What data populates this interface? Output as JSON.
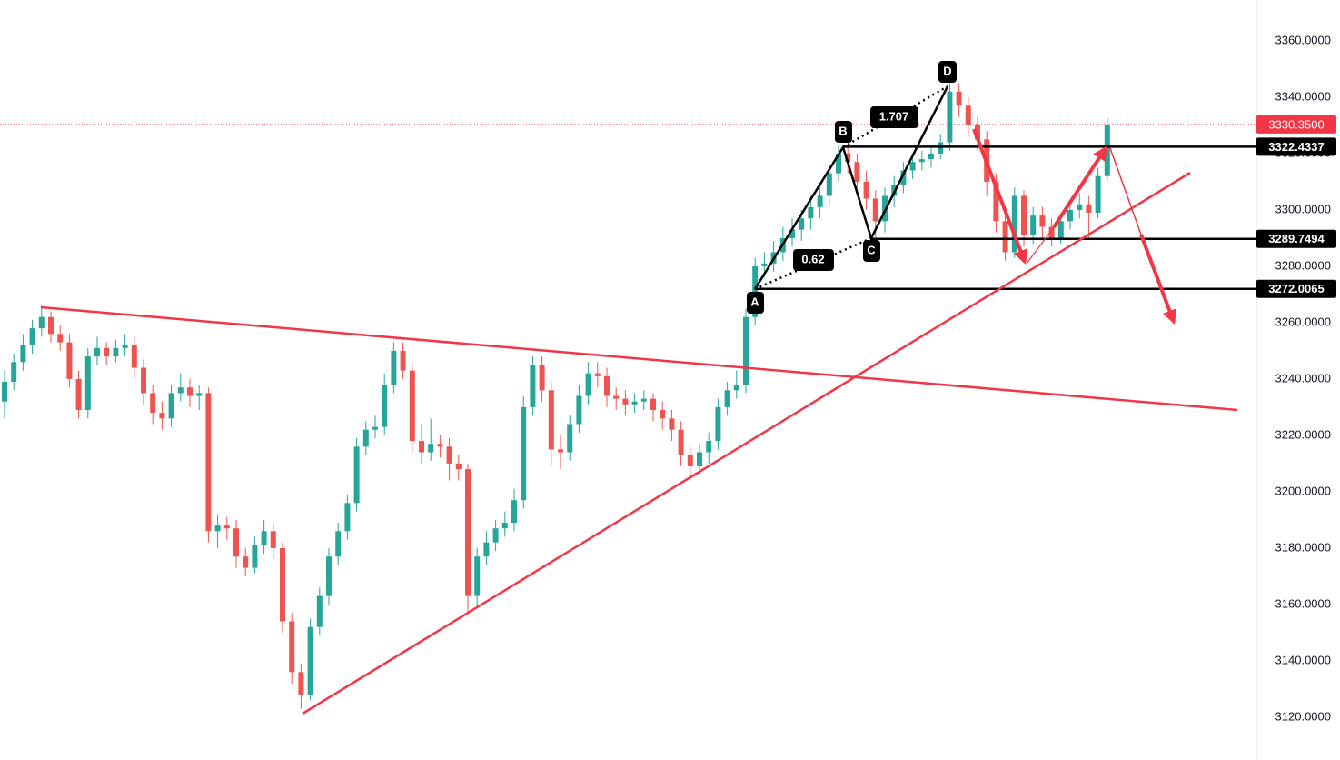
{
  "chart_data": {
    "type": "candlestick",
    "ylim": [
      3104.8,
      3374.5
    ],
    "yticks": [
      {
        "value": 3120,
        "label": "3120.0000"
      },
      {
        "value": 3140,
        "label": "3140.0000"
      },
      {
        "value": 3160,
        "label": "3160.0000"
      },
      {
        "value": 3180,
        "label": "3180.0000"
      },
      {
        "value": 3200,
        "label": "3200.0000"
      },
      {
        "value": 3220,
        "label": "3220.0000"
      },
      {
        "value": 3240,
        "label": "3240.0000"
      },
      {
        "value": 3260,
        "label": "3260.0000"
      },
      {
        "value": 3280,
        "label": "3280.0000"
      },
      {
        "value": 3300,
        "label": "3300.0000"
      },
      {
        "value": 3320,
        "label": "3320.0000"
      },
      {
        "value": 3340,
        "label": "3340.0000"
      },
      {
        "value": 3360,
        "label": "3360.0000"
      }
    ],
    "price_lines": [
      {
        "value": 3322.4337,
        "label": "3322.4337"
      },
      {
        "value": 3289.7494,
        "label": "3289.7494"
      },
      {
        "value": 3272.0065,
        "label": "3272.0065"
      }
    ],
    "last_price": {
      "value": 3330.35,
      "label": "3330.3500"
    },
    "annotations": {
      "points": [
        "A",
        "B",
        "C",
        "D"
      ],
      "ratios": [
        "1.707",
        "0.62"
      ]
    },
    "series": [
      {
        "up_color": "#26a69a",
        "down_color": "#ef5350",
        "open": [
          3232,
          3239,
          3246,
          3252,
          3258,
          3262,
          3256,
          3253,
          3240,
          3229,
          3248,
          3251,
          3248,
          3251,
          3252,
          3244,
          3235,
          3228,
          3226,
          3235,
          3237,
          3234,
          3235,
          3186,
          3188,
          3187,
          3177,
          3173,
          3181,
          3186,
          3180,
          3154,
          3136,
          3128,
          3152,
          3163,
          3177,
          3186,
          3196,
          3216,
          3222,
          3223,
          3238,
          3250,
          3243,
          3218,
          3214,
          3217,
          3216,
          3210,
          3208,
          3163,
          3177,
          3182,
          3187,
          3189,
          3197,
          3230,
          3245,
          3236,
          3215,
          3214,
          3224,
          3234,
          3242,
          3241,
          3234,
          3233,
          3231,
          3232,
          3233,
          3229,
          3226,
          3222,
          3213,
          3209,
          3214,
          3218,
          3230,
          3236,
          3238,
          3262,
          3280,
          3281,
          3285,
          3290,
          3293,
          3297,
          3301,
          3305,
          3313,
          3320,
          3317,
          3310,
          3304,
          3296,
          3305,
          3309,
          3314,
          3317,
          3318,
          3320,
          3324,
          3342,
          3337,
          3330,
          3325,
          3310,
          3296,
          3285,
          3305,
          3291,
          3298,
          3294,
          3290,
          3296,
          3300,
          3302,
          3299,
          3312
        ],
        "high": [
          3243,
          3249,
          3256,
          3261,
          3266,
          3264,
          3259,
          3256,
          3243,
          3251,
          3255,
          3253,
          3254,
          3256,
          3255,
          3247,
          3238,
          3232,
          3238,
          3242,
          3240,
          3238,
          3237,
          3192,
          3191,
          3190,
          3180,
          3184,
          3190,
          3189,
          3182,
          3157,
          3139,
          3155,
          3166,
          3180,
          3189,
          3199,
          3219,
          3225,
          3227,
          3242,
          3253,
          3253,
          3246,
          3224,
          3226,
          3220,
          3219,
          3213,
          3210,
          3180,
          3186,
          3190,
          3193,
          3201,
          3234,
          3248,
          3248,
          3239,
          3220,
          3227,
          3238,
          3246,
          3246,
          3244,
          3237,
          3236,
          3235,
          3236,
          3235,
          3232,
          3229,
          3225,
          3216,
          3217,
          3221,
          3233,
          3239,
          3243,
          3265,
          3283,
          3285,
          3289,
          3294,
          3297,
          3300,
          3305,
          3309,
          3316,
          3323,
          3323,
          3320,
          3314,
          3307,
          3308,
          3312,
          3317,
          3320,
          3321,
          3323,
          3327,
          3345,
          3345,
          3340,
          3333,
          3328,
          3313,
          3299,
          3308,
          3307,
          3301,
          3301,
          3297,
          3299,
          3303,
          3306,
          3305,
          3315,
          3333
        ],
        "low": [
          3226,
          3236,
          3243,
          3249,
          3255,
          3253,
          3250,
          3237,
          3226,
          3226,
          3245,
          3245,
          3246,
          3248,
          3240,
          3231,
          3224,
          3222,
          3223,
          3232,
          3230,
          3229,
          3182,
          3180,
          3183,
          3173,
          3170,
          3171,
          3178,
          3176,
          3150,
          3132,
          3123,
          3126,
          3149,
          3160,
          3174,
          3183,
          3193,
          3213,
          3219,
          3220,
          3235,
          3240,
          3214,
          3210,
          3211,
          3212,
          3204,
          3204,
          3157,
          3159,
          3174,
          3179,
          3184,
          3186,
          3194,
          3227,
          3232,
          3209,
          3208,
          3211,
          3221,
          3231,
          3237,
          3230,
          3229,
          3227,
          3228,
          3229,
          3225,
          3222,
          3218,
          3209,
          3204,
          3206,
          3210,
          3215,
          3227,
          3233,
          3235,
          3259,
          3276,
          3278,
          3282,
          3287,
          3289,
          3293,
          3297,
          3302,
          3310,
          3313,
          3306,
          3300,
          3290,
          3292,
          3301,
          3306,
          3311,
          3314,
          3315,
          3318,
          3321,
          3333,
          3326,
          3321,
          3305,
          3292,
          3282,
          3283,
          3287,
          3288,
          3290,
          3287,
          3288,
          3293,
          3297,
          3290,
          3297,
          3310
        ],
        "close": [
          3239,
          3246,
          3252,
          3258,
          3262,
          3256,
          3253,
          3240,
          3229,
          3248,
          3251,
          3248,
          3251,
          3252,
          3244,
          3235,
          3228,
          3226,
          3235,
          3237,
          3234,
          3235,
          3186,
          3188,
          3187,
          3177,
          3173,
          3181,
          3186,
          3180,
          3154,
          3136,
          3128,
          3152,
          3163,
          3177,
          3186,
          3196,
          3216,
          3222,
          3223,
          3238,
          3250,
          3243,
          3218,
          3214,
          3217,
          3216,
          3210,
          3208,
          3163,
          3177,
          3182,
          3187,
          3189,
          3197,
          3230,
          3245,
          3236,
          3215,
          3214,
          3224,
          3234,
          3242,
          3241,
          3234,
          3233,
          3231,
          3232,
          3233,
          3229,
          3226,
          3222,
          3213,
          3209,
          3214,
          3218,
          3230,
          3236,
          3238,
          3262,
          3280,
          3281,
          3285,
          3290,
          3293,
          3297,
          3301,
          3305,
          3313,
          3320,
          3317,
          3310,
          3304,
          3296,
          3305,
          3309,
          3314,
          3317,
          3318,
          3320,
          3324,
          3342,
          3337,
          3330,
          3325,
          3310,
          3296,
          3285,
          3305,
          3291,
          3298,
          3294,
          3290,
          3296,
          3300,
          3302,
          3299,
          3312,
          3330.35
        ]
      }
    ]
  }
}
